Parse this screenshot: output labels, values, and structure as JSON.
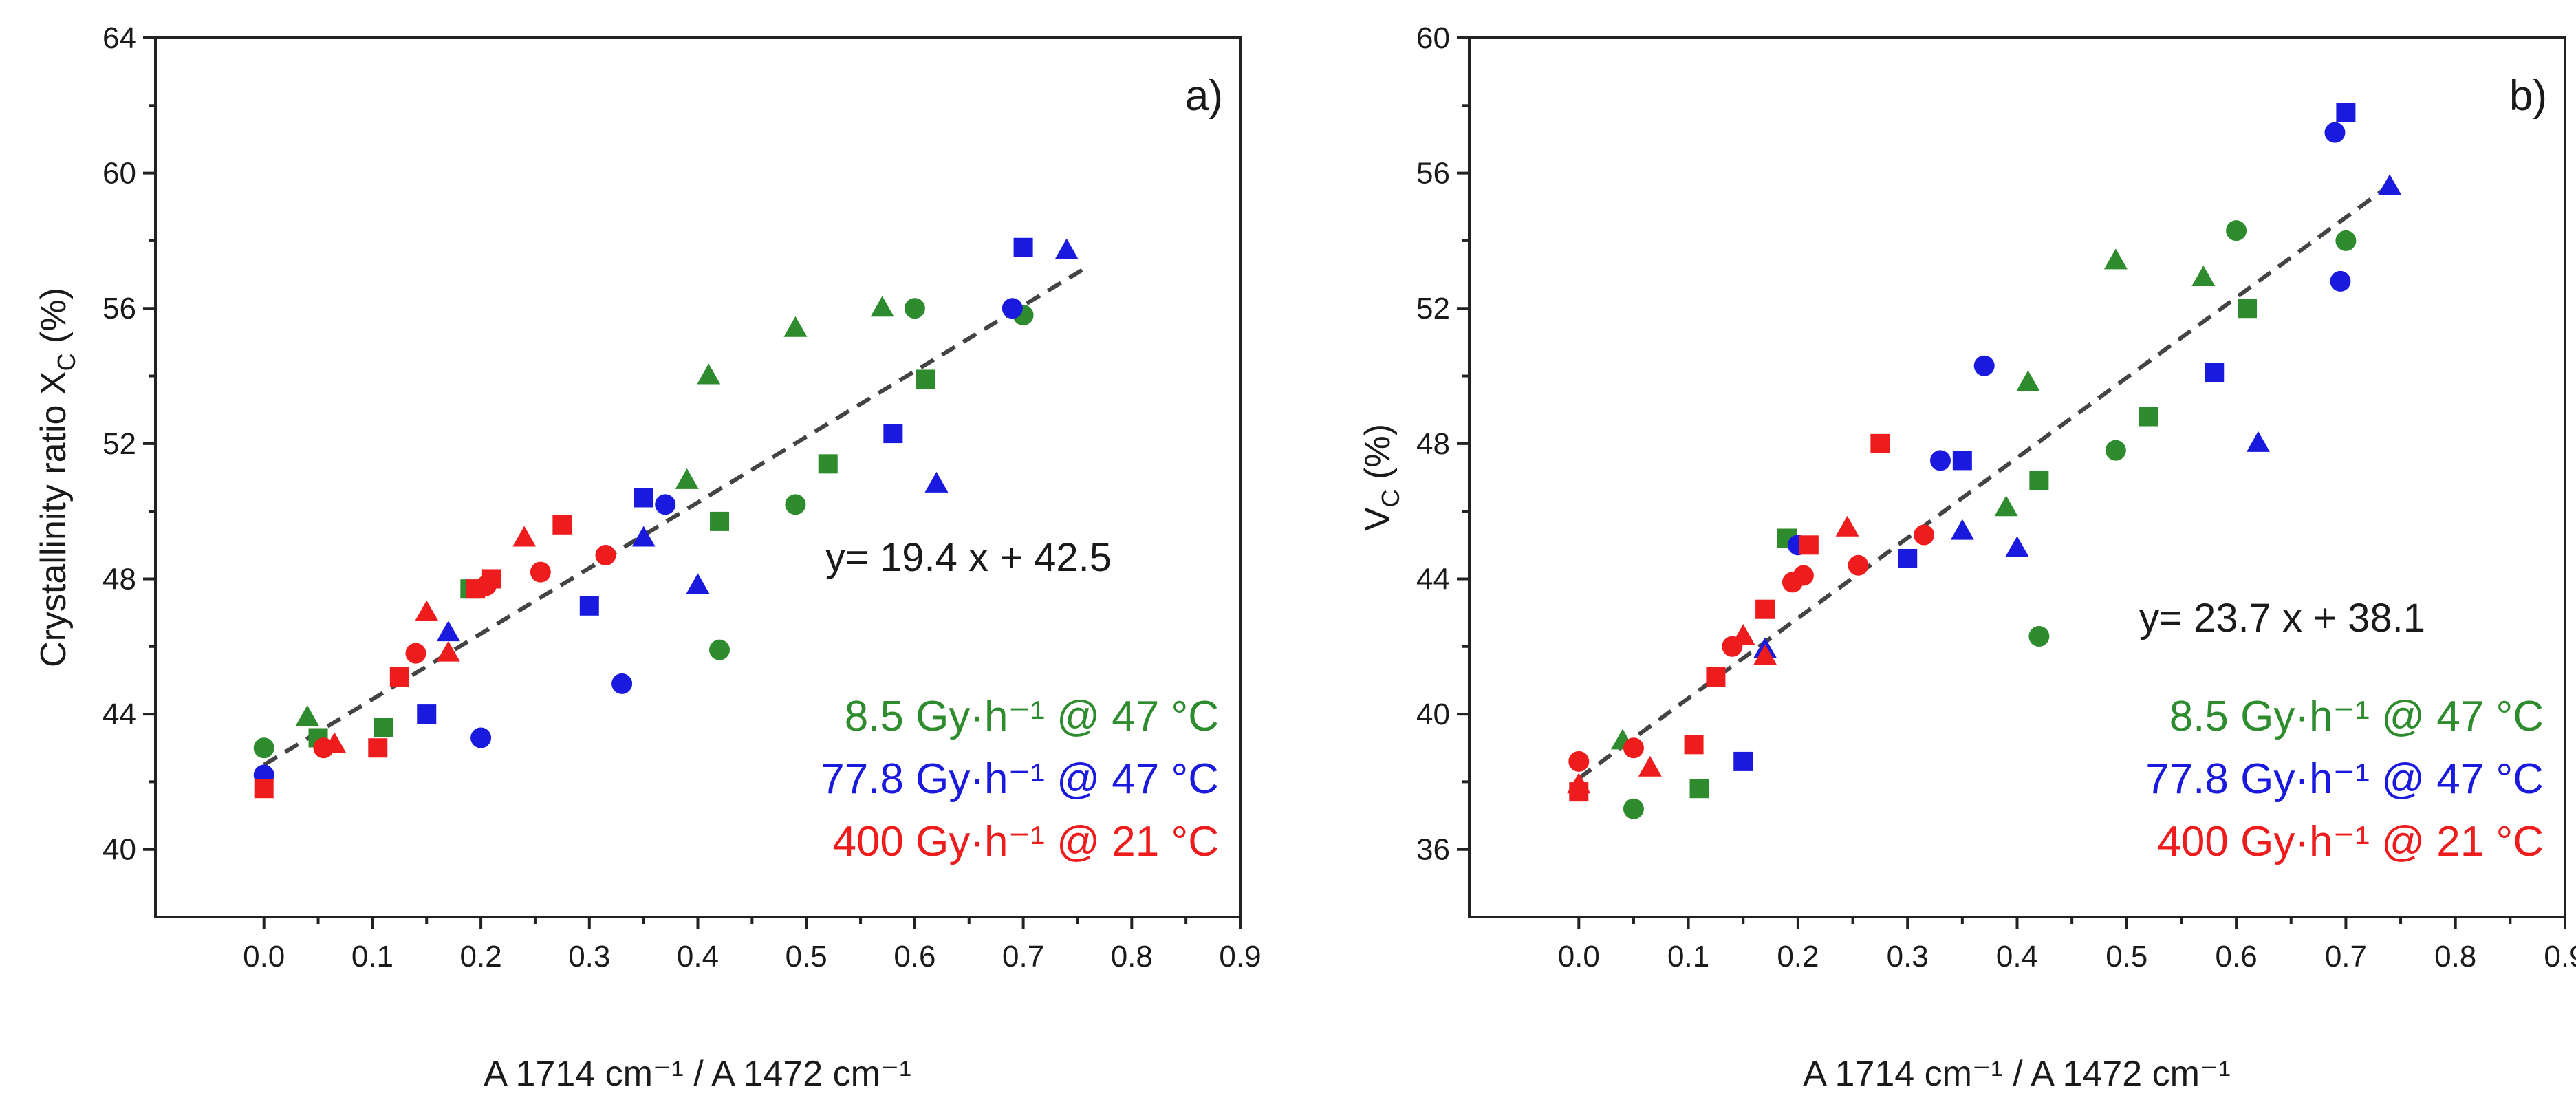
{
  "colors": {
    "green": "#2e8b2e",
    "blue": "#1a1adf",
    "red": "#ee1c1c"
  },
  "chart_data": [
    {
      "type": "scatter",
      "panel_label": "a)",
      "ylabel_main": "Crystallinity ratio X",
      "ylabel_sub": "C",
      "ylabel_unit": " (%)",
      "xlabel": "A 1714 cm⁻¹ / A 1472 cm⁻¹",
      "xlim": [
        -0.1,
        0.9
      ],
      "ylim": [
        38,
        64
      ],
      "xticks": [
        0.0,
        0.1,
        0.2,
        0.3,
        0.4,
        0.5,
        0.6,
        0.7,
        0.8,
        0.9
      ],
      "xtick_labels": [
        "0.0",
        "0.1",
        "0.2",
        "0.3",
        "0.4",
        "0.5",
        "0.6",
        "0.7",
        "0.8",
        "0.9"
      ],
      "yticks": [
        40,
        44,
        48,
        52,
        56,
        60,
        64
      ],
      "ytick_labels": [
        "40",
        "44",
        "48",
        "52",
        "56",
        "60",
        "64"
      ],
      "equation": "y= 19.4 x + 42.5",
      "fit": {
        "slope": 19.4,
        "intercept": 42.5,
        "x_range": [
          0.0,
          0.76
        ]
      },
      "legend": [
        {
          "label": "8.5 Gy·h⁻¹ @ 47 °C",
          "color": "green"
        },
        {
          "label": "77.8 Gy·h⁻¹ @ 47 °C",
          "color": "blue"
        },
        {
          "label": "400 Gy·h⁻¹ @ 21 °C",
          "color": "red"
        }
      ],
      "series": [
        {
          "name": "8.5 Gy·h⁻¹ @ 47 °C",
          "color": "green",
          "marker": "circle",
          "x": [
            0.0,
            0.49,
            0.42,
            0.6,
            0.7
          ],
          "y": [
            43.0,
            50.2,
            45.9,
            56.0,
            55.8
          ]
        },
        {
          "name": "8.5 Gy·h⁻¹ @ 47 °C",
          "color": "green",
          "marker": "square",
          "x": [
            0.05,
            0.11,
            0.19,
            0.42,
            0.52,
            0.61
          ],
          "y": [
            43.3,
            43.6,
            47.7,
            49.7,
            51.4,
            53.9
          ]
        },
        {
          "name": "8.5 Gy·h⁻¹ @ 47 °C",
          "color": "green",
          "marker": "triangle",
          "x": [
            0.04,
            0.39,
            0.41,
            0.49,
            0.57
          ],
          "y": [
            43.9,
            50.9,
            54.0,
            55.4,
            56.0
          ]
        },
        {
          "name": "77.8 Gy·h⁻¹ @ 47 °C",
          "color": "blue",
          "marker": "circle",
          "x": [
            0.0,
            0.2,
            0.33,
            0.37,
            0.69
          ],
          "y": [
            42.2,
            43.3,
            44.9,
            50.2,
            56.0
          ]
        },
        {
          "name": "77.8 Gy·h⁻¹ @ 47 °C",
          "color": "blue",
          "marker": "square",
          "x": [
            0.15,
            0.3,
            0.35,
            0.58,
            0.7
          ],
          "y": [
            44.0,
            47.2,
            50.4,
            52.3,
            57.8
          ]
        },
        {
          "name": "77.8 Gy·h⁻¹ @ 47 °C",
          "color": "blue",
          "marker": "triangle",
          "x": [
            0.17,
            0.35,
            0.4,
            0.62,
            0.74
          ],
          "y": [
            46.4,
            49.2,
            47.8,
            50.8,
            57.7
          ]
        },
        {
          "name": "400 Gy·h⁻¹ @ 21 °C",
          "color": "red",
          "marker": "circle",
          "x": [
            0.055,
            0.14,
            0.205,
            0.255,
            0.315
          ],
          "y": [
            43.0,
            45.8,
            47.8,
            48.2,
            48.7
          ]
        },
        {
          "name": "400 Gy·h⁻¹ @ 21 °C",
          "color": "red",
          "marker": "square",
          "x": [
            0.0,
            0.105,
            0.125,
            0.195,
            0.21,
            0.275
          ],
          "y": [
            41.8,
            43.0,
            45.1,
            47.7,
            48.0,
            49.6
          ]
        },
        {
          "name": "400 Gy·h⁻¹ @ 21 °C",
          "color": "red",
          "marker": "triangle",
          "x": [
            0.065,
            0.15,
            0.17,
            0.24
          ],
          "y": [
            43.1,
            47.0,
            45.8,
            49.2
          ]
        }
      ]
    },
    {
      "type": "scatter",
      "panel_label": "b)",
      "ylabel_main": "V",
      "ylabel_sub": "C",
      "ylabel_unit": " (%)",
      "xlabel": "A 1714 cm⁻¹ / A 1472 cm⁻¹",
      "xlim": [
        -0.1,
        0.9
      ],
      "ylim": [
        34,
        60
      ],
      "xticks": [
        0.0,
        0.1,
        0.2,
        0.3,
        0.4,
        0.5,
        0.6,
        0.7,
        0.8,
        0.9
      ],
      "xtick_labels": [
        "0.0",
        "0.1",
        "0.2",
        "0.3",
        "0.4",
        "0.5",
        "0.6",
        "0.7",
        "0.8",
        "0.9"
      ],
      "yticks": [
        36,
        40,
        44,
        48,
        52,
        56,
        60
      ],
      "ytick_labels": [
        "36",
        "40",
        "44",
        "48",
        "52",
        "56",
        "60"
      ],
      "equation": "y= 23.7 x + 38.1",
      "fit": {
        "slope": 23.7,
        "intercept": 38.1,
        "x_range": [
          0.0,
          0.74
        ]
      },
      "legend": [
        {
          "label": "8.5 Gy·h⁻¹ @ 47 °C",
          "color": "green"
        },
        {
          "label": "77.8 Gy·h⁻¹ @ 47 °C",
          "color": "blue"
        },
        {
          "label": "400 Gy·h⁻¹ @ 21 °C",
          "color": "red"
        }
      ],
      "series": [
        {
          "name": "8.5 Gy·h⁻¹ @ 47 °C",
          "color": "green",
          "marker": "circle",
          "x": [
            0.05,
            0.42,
            0.49,
            0.6,
            0.7
          ],
          "y": [
            37.2,
            42.3,
            47.8,
            54.3,
            54.0
          ]
        },
        {
          "name": "8.5 Gy·h⁻¹ @ 47 °C",
          "color": "green",
          "marker": "square",
          "x": [
            0.11,
            0.19,
            0.42,
            0.52,
            0.61
          ],
          "y": [
            37.8,
            45.2,
            46.9,
            48.8,
            52.0
          ]
        },
        {
          "name": "8.5 Gy·h⁻¹ @ 47 °C",
          "color": "green",
          "marker": "triangle",
          "x": [
            0.04,
            0.39,
            0.41,
            0.49,
            0.57
          ],
          "y": [
            39.2,
            46.1,
            49.8,
            53.4,
            52.9
          ]
        },
        {
          "name": "77.8 Gy·h⁻¹ @ 47 °C",
          "color": "blue",
          "marker": "circle",
          "x": [
            0.2,
            0.33,
            0.37,
            0.69,
            0.695
          ],
          "y": [
            45.0,
            47.5,
            50.3,
            57.2,
            52.8
          ]
        },
        {
          "name": "77.8 Gy·h⁻¹ @ 47 °C",
          "color": "blue",
          "marker": "square",
          "x": [
            0.15,
            0.3,
            0.35,
            0.58,
            0.7
          ],
          "y": [
            38.6,
            44.6,
            47.5,
            50.1,
            57.8
          ]
        },
        {
          "name": "77.8 Gy·h⁻¹ @ 47 °C",
          "color": "blue",
          "marker": "triangle",
          "x": [
            0.17,
            0.35,
            0.4,
            0.62,
            0.74
          ],
          "y": [
            41.9,
            45.4,
            44.9,
            48.0,
            55.6
          ]
        },
        {
          "name": "400 Gy·h⁻¹ @ 21 °C",
          "color": "red",
          "marker": "circle",
          "x": [
            0.0,
            0.05,
            0.14,
            0.195,
            0.205,
            0.255,
            0.315
          ],
          "y": [
            38.6,
            39.0,
            42.0,
            43.9,
            44.1,
            44.4,
            45.3
          ]
        },
        {
          "name": "400 Gy·h⁻¹ @ 21 °C",
          "color": "red",
          "marker": "square",
          "x": [
            0.0,
            0.105,
            0.125,
            0.17,
            0.21,
            0.275
          ],
          "y": [
            37.7,
            39.1,
            41.1,
            43.1,
            45.0,
            48.0
          ]
        },
        {
          "name": "400 Gy·h⁻¹ @ 21 °C",
          "color": "red",
          "marker": "triangle",
          "x": [
            0.0,
            0.065,
            0.15,
            0.17,
            0.245
          ],
          "y": [
            37.9,
            38.4,
            42.3,
            41.7,
            45.5
          ]
        }
      ]
    }
  ]
}
